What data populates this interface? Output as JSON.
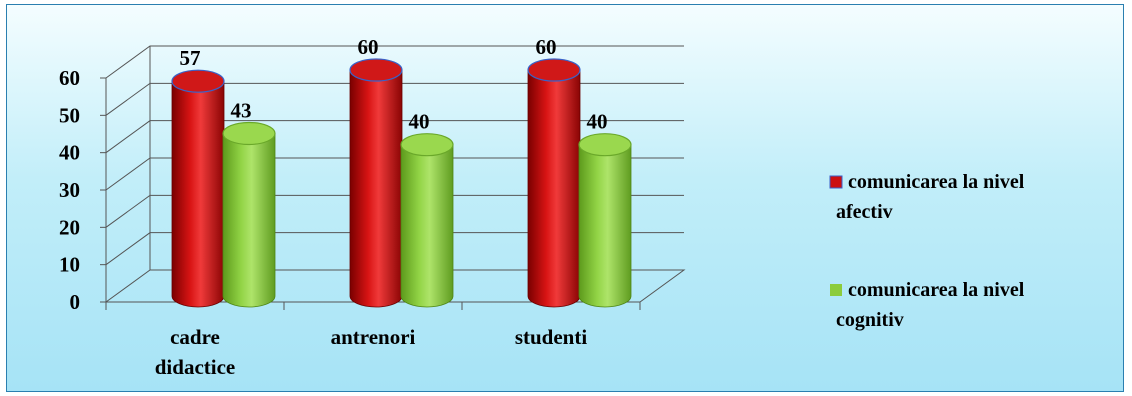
{
  "chart_data": {
    "type": "bar",
    "style": "3d-cylinder",
    "categories": [
      "cadre didactice",
      "antrenori",
      "studenti"
    ],
    "category_lines": [
      [
        "cadre",
        "didactice"
      ],
      [
        "antrenori"
      ],
      [
        "studenti"
      ]
    ],
    "series": [
      {
        "name": "comunicarea la nivel afectiv",
        "name_lines": [
          "comunicarea la nivel",
          "afectiv"
        ],
        "values": [
          57,
          60,
          60
        ],
        "color": "#cc1010"
      },
      {
        "name": "comunicarea  la nivel cognitiv",
        "name_lines": [
          "comunicarea  la nivel",
          "cognitiv"
        ],
        "values": [
          43,
          40,
          40
        ],
        "color": "#8ccc3c"
      }
    ],
    "ylim": [
      0,
      60
    ],
    "yticks": [
      0,
      10,
      20,
      30,
      40,
      50,
      60
    ],
    "grid": true,
    "legend": "right",
    "data_labels": true
  }
}
